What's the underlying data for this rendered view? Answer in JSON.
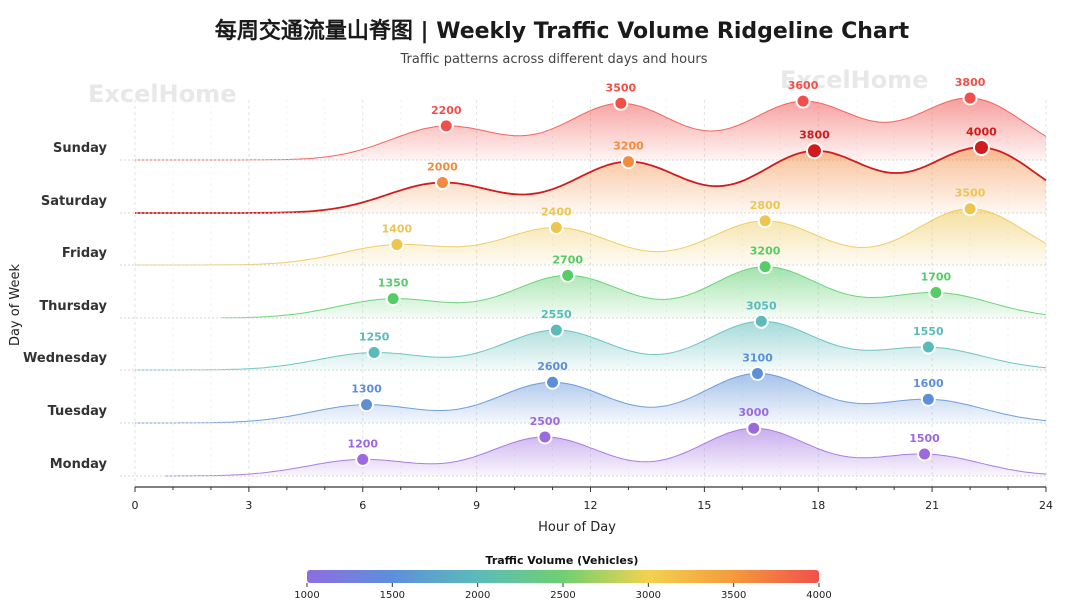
{
  "title": "每周交通流量山脊图 | Weekly Traffic Volume Ridgeline Chart",
  "subtitle": "Traffic patterns across different days and hours",
  "watermarks": [
    "ExcelHome",
    "ExcelHome"
  ],
  "colors": {
    "Monday": "#9c6ade",
    "Tuesday": "#5b8fd8",
    "Wednesday": "#5bbbbb",
    "Thursday": "#55cc66",
    "Friday": "#ecc64f",
    "Saturday": "#f48a3c",
    "Sunday": "#f0504a",
    "highlight": "#d01c1c"
  },
  "chart_data": {
    "type": "ridgeline",
    "xlabel": "Hour of Day",
    "ylabel": "Day of Week",
    "xlim": [
      0,
      24
    ],
    "xticks": [
      0,
      3,
      6,
      9,
      12,
      15,
      18,
      21,
      24
    ],
    "series": [
      {
        "name": "Monday",
        "start": 0.8,
        "peaks": [
          {
            "x": 6.0,
            "v": 1200
          },
          {
            "x": 10.8,
            "v": 2500
          },
          {
            "x": 16.3,
            "v": 3000
          },
          {
            "x": 20.8,
            "v": 1500
          }
        ]
      },
      {
        "name": "Tuesday",
        "start": 0,
        "peaks": [
          {
            "x": 6.1,
            "v": 1300
          },
          {
            "x": 11.0,
            "v": 2600
          },
          {
            "x": 16.4,
            "v": 3100
          },
          {
            "x": 20.9,
            "v": 1600
          }
        ]
      },
      {
        "name": "Wednesday",
        "start": 0,
        "peaks": [
          {
            "x": 6.3,
            "v": 1250
          },
          {
            "x": 11.1,
            "v": 2550
          },
          {
            "x": 16.5,
            "v": 3050
          },
          {
            "x": 20.9,
            "v": 1550
          }
        ]
      },
      {
        "name": "Thursday",
        "start": 2.3,
        "peaks": [
          {
            "x": 6.8,
            "v": 1350
          },
          {
            "x": 11.4,
            "v": 2700
          },
          {
            "x": 16.6,
            "v": 3200
          },
          {
            "x": 21.1,
            "v": 1700
          }
        ]
      },
      {
        "name": "Friday",
        "start": 0,
        "peaks": [
          {
            "x": 6.9,
            "v": 1400
          },
          {
            "x": 11.1,
            "v": 2400
          },
          {
            "x": 16.6,
            "v": 2800
          },
          {
            "x": 22.0,
            "v": 3500
          }
        ]
      },
      {
        "name": "Saturday",
        "start": 0,
        "peaks": [
          {
            "x": 8.1,
            "v": 2000
          },
          {
            "x": 13.0,
            "v": 3200
          },
          {
            "x": 17.9,
            "v": 3800
          },
          {
            "x": 22.3,
            "v": 4000
          }
        ],
        "highlight": true
      },
      {
        "name": "Sunday",
        "start": 0,
        "peaks": [
          {
            "x": 8.2,
            "v": 2200
          },
          {
            "x": 12.8,
            "v": 3500
          },
          {
            "x": 17.6,
            "v": 3600
          },
          {
            "x": 22.0,
            "v": 3800
          }
        ]
      }
    ],
    "colorbar": {
      "title": "Traffic Volume (Vehicles)",
      "min": 1000,
      "max": 4000,
      "ticks": [
        1000,
        1500,
        2000,
        2500,
        3000,
        3500,
        4000
      ],
      "stops": [
        "#8e6ee0",
        "#5d8fdc",
        "#5bbbbb",
        "#6fd070",
        "#f2d24f",
        "#f59a3c",
        "#f0504a"
      ]
    }
  }
}
